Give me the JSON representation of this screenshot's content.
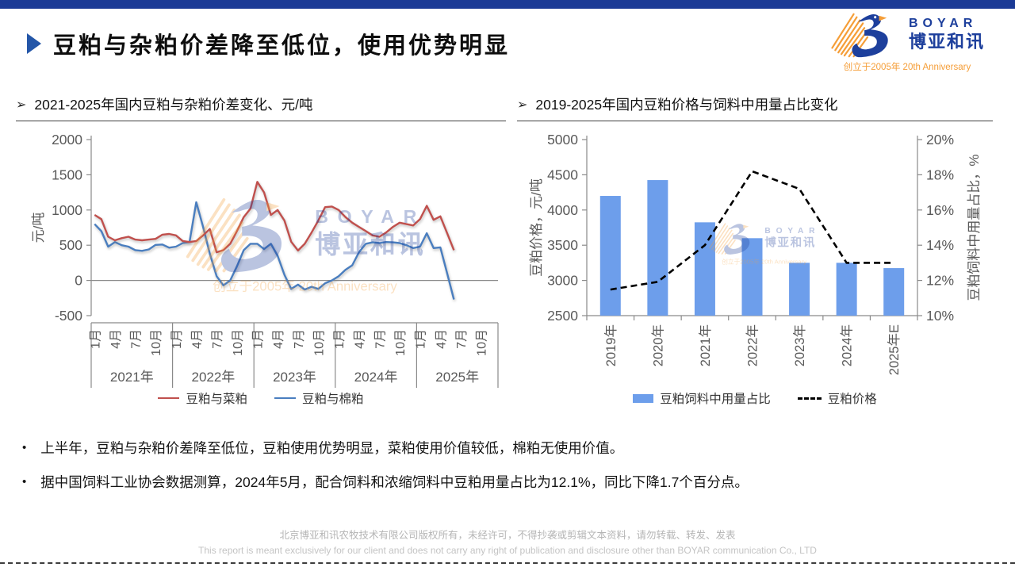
{
  "slide": {
    "title": "豆粕与杂粕价差降至低位，使用优势明显",
    "section_marker": "➢",
    "bullet_marker": "•",
    "logo": {
      "brand_en": "BOYAR",
      "brand_cn": "博亚和讯",
      "tagline": "创立于2005年 20th Anniversary"
    },
    "colors": {
      "accent_bar": "#1b3a96",
      "logo_blue": "#1d3f9c",
      "logo_orange": "#f59e38"
    },
    "bullets": [
      "上半年，豆粕与杂粕价差降至低位，豆粕使用优势明显，菜粕使用价值较低，棉粕无使用价值。",
      "据中国饲料工业协会数据测算，2024年5月，配合饲料和浓缩饲料中豆粕用量占比为12.1%，同比下降1.7个百分点。"
    ],
    "footer": {
      "cn": "北京博亚和讯农牧技术有限公司版权所有，未经许可，不得抄袭或剪辑文本资料，请勿转载、转发、发表",
      "en": "This report is meant exclusively for our client and does not carry any right of publication and disclosure other than BOYAR communication Co., LTD"
    }
  },
  "chart_data": [
    {
      "type": "line",
      "header": "2021-2025年国内豆粕与杂粕价差变化、元/吨",
      "ylabel": "元/吨",
      "ylim": [
        -500,
        2000
      ],
      "yticks": [
        2000,
        1500,
        1000,
        500,
        0,
        -500
      ],
      "grid": "zero-line-only",
      "legend_position": "bottom",
      "x_month_ticks": [
        "1月",
        "4月",
        "7月",
        "10月"
      ],
      "year_groups": [
        "2021年",
        "2022年",
        "2023年",
        "2024年",
        "2025年"
      ],
      "months_per_year": 12,
      "x_start": "2021-01",
      "series": [
        {
          "name": "豆粕与菜粕",
          "color": "#c0504d",
          "values": [
            930,
            870,
            620,
            570,
            600,
            620,
            580,
            570,
            580,
            590,
            650,
            660,
            640,
            560,
            545,
            560,
            640,
            730,
            400,
            430,
            520,
            700,
            900,
            1020,
            1400,
            1250,
            930,
            1000,
            850,
            550,
            425,
            520,
            680,
            850,
            1040,
            1050,
            1000,
            900,
            820,
            760,
            700,
            640,
            620,
            680,
            760,
            820,
            800,
            780,
            870,
            1060,
            860,
            910,
            670,
            430
          ]
        },
        {
          "name": "豆粕与棉粕",
          "color": "#4a7ebf",
          "values": [
            800,
            700,
            480,
            545,
            500,
            480,
            430,
            420,
            440,
            505,
            510,
            465,
            480,
            530,
            545,
            1110,
            760,
            380,
            60,
            -70,
            0,
            200,
            430,
            520,
            520,
            445,
            520,
            350,
            80,
            -120,
            -60,
            -130,
            -90,
            -120,
            -40,
            0,
            60,
            150,
            215,
            400,
            520,
            540,
            530,
            545,
            540,
            530,
            500,
            460,
            480,
            670,
            460,
            470,
            100,
            -270
          ]
        }
      ]
    },
    {
      "type": "bar+line",
      "header": "2019-2025年国内豆粕价格与饲料中用量占比变化",
      "categories": [
        "2019年",
        "2020年",
        "2021年",
        "2022年",
        "2023年",
        "2024年",
        "2025年E"
      ],
      "left_axis": {
        "label": "豆粕价格，元/吨",
        "lim": [
          2500,
          5000
        ],
        "ticks": [
          5000,
          4500,
          4000,
          3500,
          3000,
          2500
        ]
      },
      "right_axis": {
        "label": "豆粕饲料中用量占比，%",
        "lim": [
          10,
          20
        ],
        "ticks": [
          20,
          18,
          16,
          14,
          12,
          10
        ],
        "tick_suffix": "%"
      },
      "legend_position": "bottom",
      "series": [
        {
          "name": "豆粕饲料中用量占比",
          "type": "bar",
          "axis": "right",
          "color": "#6d9eeb",
          "values": [
            16.8,
            17.7,
            15.3,
            14.4,
            13.0,
            13.0,
            12.7
          ]
        },
        {
          "name": "豆粕价格",
          "type": "line",
          "axis": "left",
          "style": "dashed",
          "color": "#000000",
          "values": [
            2870,
            2980,
            3500,
            4550,
            4300,
            3250,
            3250
          ]
        }
      ]
    }
  ]
}
